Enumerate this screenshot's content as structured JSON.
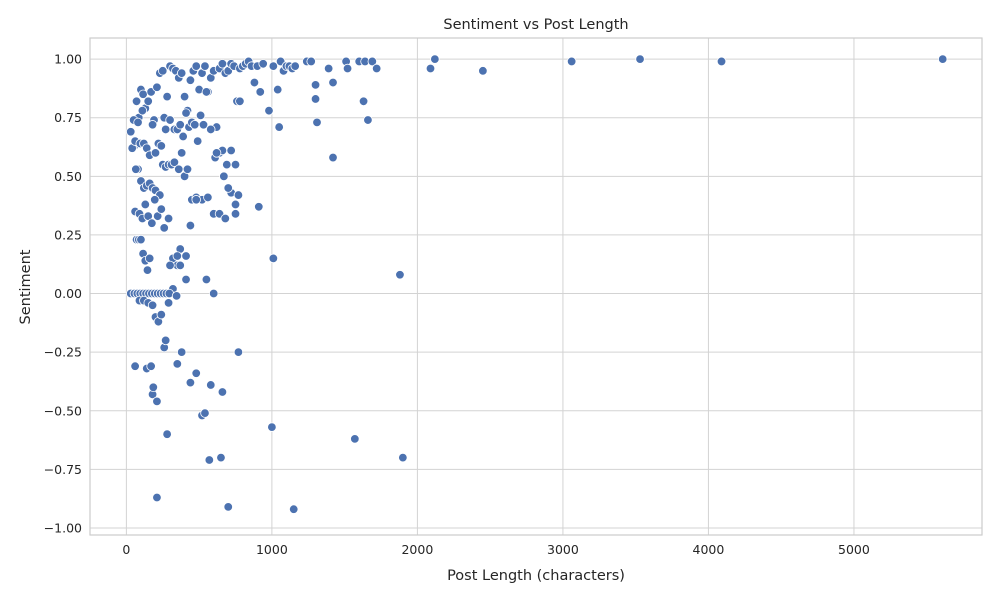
{
  "chart_data": {
    "type": "scatter",
    "title": "Sentiment vs Post Length",
    "xlabel": "Post Length (characters)",
    "ylabel": "Sentiment",
    "xlim": [
      -250,
      5880
    ],
    "ylim": [
      -1.03,
      1.09
    ],
    "xticks": [
      0,
      1000,
      2000,
      3000,
      4000,
      5000
    ],
    "yticks": [
      -1.0,
      -0.75,
      -0.5,
      -0.25,
      0.0,
      0.25,
      0.5,
      0.75,
      1.0
    ],
    "xtick_labels": [
      "0",
      "1000",
      "2000",
      "3000",
      "4000",
      "5000"
    ],
    "ytick_labels": [
      "−1.00",
      "−0.75",
      "−0.50",
      "−0.25",
      "0.00",
      "0.25",
      "0.50",
      "0.75",
      "1.00"
    ],
    "grid": true,
    "marker_color": "#4c72b0",
    "x": [
      30,
      55,
      70,
      85,
      100,
      115,
      130,
      150,
      170,
      190,
      210,
      230,
      250,
      280,
      300,
      320,
      340,
      360,
      380,
      400,
      420,
      440,
      460,
      480,
      500,
      520,
      540,
      560,
      580,
      600,
      620,
      640,
      660,
      680,
      700,
      720,
      740,
      760,
      780,
      800,
      820,
      840,
      860,
      880,
      900,
      920,
      940,
      980,
      1010,
      1040,
      1060,
      1080,
      1100,
      1120,
      1140,
      1160,
      1240,
      1270,
      1300,
      1390,
      1420,
      1510,
      1520,
      1600,
      1640,
      1690,
      1720,
      2090,
      2120,
      2450,
      3060,
      3530,
      4090,
      5610,
      40,
      50,
      60,
      80,
      95,
      110,
      120,
      140,
      160,
      180,
      200,
      220,
      240,
      260,
      270,
      300,
      330,
      350,
      370,
      390,
      410,
      430,
      450,
      470,
      490,
      510,
      530,
      550,
      580,
      610,
      640,
      660,
      690,
      720,
      750,
      780,
      980,
      1050,
      1300,
      1310,
      1420,
      1630,
      1660,
      60,
      80,
      100,
      120,
      140,
      160,
      180,
      200,
      230,
      250,
      270,
      290,
      310,
      330,
      360,
      380,
      400,
      420,
      450,
      480,
      520,
      560,
      600,
      640,
      680,
      720,
      750,
      770,
      65,
      90,
      110,
      130,
      150,
      175,
      195,
      215,
      240,
      260,
      290,
      320,
      350,
      370,
      410,
      440,
      480,
      550,
      620,
      670,
      700,
      750,
      910,
      1010,
      1880,
      70,
      85,
      100,
      115,
      130,
      145,
      160,
      300,
      320,
      350,
      370,
      410,
      600,
      30,
      55,
      75,
      95,
      115,
      135,
      155,
      175,
      195,
      215,
      235,
      255,
      275,
      295,
      345,
      90,
      120,
      150,
      180,
      200,
      220,
      240,
      260,
      270,
      290,
      380,
      480,
      580,
      660,
      770,
      60,
      140,
      170,
      180,
      185,
      210,
      280,
      350,
      440,
      520,
      540,
      570,
      650,
      700,
      1000,
      1150,
      1570,
      1900,
      210
    ],
    "y": [
      0.69,
      0.63,
      0.82,
      0.75,
      0.87,
      0.85,
      0.79,
      0.82,
      0.86,
      0.74,
      0.88,
      0.94,
      0.95,
      0.84,
      0.97,
      0.96,
      0.95,
      0.92,
      0.94,
      0.84,
      0.78,
      0.91,
      0.95,
      0.97,
      0.87,
      0.94,
      0.97,
      0.86,
      0.92,
      0.95,
      0.71,
      0.96,
      0.98,
      0.94,
      0.95,
      0.98,
      0.97,
      0.82,
      0.96,
      0.97,
      0.98,
      0.99,
      0.97,
      0.9,
      0.97,
      0.86,
      0.98,
      0.78,
      0.97,
      0.87,
      0.99,
      0.95,
      0.97,
      0.97,
      0.96,
      0.97,
      0.99,
      0.99,
      0.83,
      0.96,
      0.9,
      0.99,
      0.96,
      0.99,
      0.99,
      0.99,
      0.96,
      0.96,
      1.0,
      0.95,
      0.99,
      1.0,
      0.99,
      1.0,
      0.62,
      0.74,
      0.65,
      0.73,
      0.64,
      0.78,
      0.64,
      0.62,
      0.59,
      0.72,
      0.6,
      0.64,
      0.63,
      0.75,
      0.7,
      0.74,
      0.7,
      0.7,
      0.72,
      0.67,
      0.77,
      0.71,
      0.73,
      0.72,
      0.65,
      0.76,
      0.72,
      0.86,
      0.7,
      0.58,
      0.6,
      0.61,
      0.55,
      0.61,
      0.55,
      0.82,
      0.78,
      0.71,
      0.89,
      0.73,
      0.58,
      0.82,
      0.74,
      0.35,
      0.53,
      0.48,
      0.45,
      0.46,
      0.47,
      0.45,
      0.44,
      0.42,
      0.55,
      0.54,
      0.55,
      0.55,
      0.56,
      0.53,
      0.6,
      0.5,
      0.53,
      0.4,
      0.41,
      0.4,
      0.41,
      0.34,
      0.34,
      0.32,
      0.43,
      0.34,
      0.42,
      0.53,
      0.34,
      0.32,
      0.38,
      0.33,
      0.3,
      0.4,
      0.33,
      0.36,
      0.28,
      0.32,
      0.15,
      0.12,
      0.19,
      0.16,
      0.29,
      0.4,
      0.06,
      0.6,
      0.5,
      0.45,
      0.38,
      0.37,
      0.15,
      0.08,
      0.23,
      0.23,
      0.23,
      0.17,
      0.14,
      0.1,
      0.15,
      0.12,
      0.02,
      0.16,
      0.12,
      0.06,
      0.0,
      0.0,
      0.0,
      0.0,
      0.0,
      0.0,
      0.0,
      0.0,
      0.0,
      0.0,
      0.0,
      0.0,
      0.0,
      0.0,
      0.0,
      -0.01,
      -0.03,
      -0.03,
      -0.04,
      -0.05,
      -0.1,
      -0.12,
      -0.09,
      -0.23,
      -0.2,
      -0.04,
      -0.25,
      -0.34,
      -0.39,
      -0.42,
      -0.25,
      -0.31,
      -0.32,
      -0.31,
      -0.43,
      -0.4,
      -0.46,
      -0.6,
      -0.3,
      -0.38,
      -0.52,
      -0.51,
      -0.71,
      -0.7,
      -0.91,
      -0.57,
      -0.92,
      -0.62,
      -0.7,
      -0.87
    ]
  }
}
